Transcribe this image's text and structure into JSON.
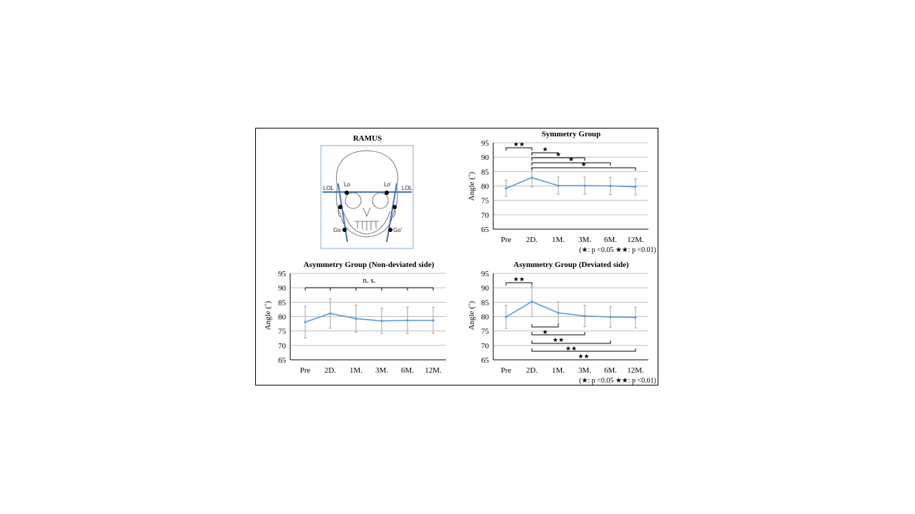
{
  "diagram": {
    "title": "RAMUS",
    "labels": {
      "lol_left": "LOL",
      "lol_right": "LOL",
      "lo": "Lo",
      "lo_prime": "Lo'",
      "go": "Go",
      "go_prime": "Go'"
    }
  },
  "colors": {
    "series": "#5b9bd5",
    "grid": "#bfbfbf",
    "axis": "#000000",
    "errorbar": "#a6a6a6",
    "diagram_border": "#8ea9db",
    "diagram_line": "#4472c4"
  },
  "chart_data": [
    {
      "id": "symmetry",
      "type": "line",
      "title": "Symmetry Group",
      "ylabel": "Angle (˚)",
      "ylim": [
        65,
        95
      ],
      "yticks": [
        65,
        70,
        75,
        80,
        85,
        90,
        95
      ],
      "categories": [
        "Pre",
        "2D.",
        "1M.",
        "3M.",
        "6M.",
        "12M."
      ],
      "series": [
        {
          "values": [
            79.2,
            82.9,
            80.1,
            80.1,
            80.0,
            79.7
          ],
          "err": [
            2.8,
            3.3,
            3.0,
            3.0,
            3.0,
            2.8
          ]
        }
      ],
      "note": "(★: p <0.05  ★★: p <0.01)",
      "significance": [
        {
          "from": 0,
          "to": 1,
          "label": "★★"
        },
        {
          "from": 1,
          "to": 2,
          "label": "★"
        },
        {
          "from": 1,
          "to": 3,
          "label": "★"
        },
        {
          "from": 1,
          "to": 4,
          "label": "★"
        },
        {
          "from": 1,
          "to": 5,
          "label": "★"
        }
      ]
    },
    {
      "id": "asym_non",
      "type": "line",
      "title": "Asymmetry Group (Non-deviated side)",
      "ylabel": "Angle (˚)",
      "ylim": [
        65,
        95
      ],
      "yticks": [
        65,
        70,
        75,
        80,
        85,
        90,
        95
      ],
      "categories": [
        "Pre",
        "2D.",
        "1M.",
        "3M.",
        "6M.",
        "12M."
      ],
      "series": [
        {
          "values": [
            78.1,
            81.1,
            79.3,
            78.5,
            78.7,
            78.7
          ],
          "err": [
            5.5,
            5.1,
            4.7,
            4.4,
            4.6,
            4.5
          ]
        }
      ],
      "note": "",
      "bracket_all": {
        "label": "n. s."
      },
      "significance": []
    },
    {
      "id": "asym_dev",
      "type": "line",
      "title": "Asymmetry Group (Deviated side)",
      "ylabel": "Angle (˚)",
      "ylim": [
        65,
        95
      ],
      "yticks": [
        65,
        70,
        75,
        80,
        85,
        90,
        95
      ],
      "categories": [
        "Pre",
        "2D.",
        "1M.",
        "3M.",
        "6M.",
        "12M."
      ],
      "series": [
        {
          "values": [
            79.9,
            85.2,
            81.3,
            80.2,
            79.9,
            79.7
          ],
          "err": [
            4.0,
            5.2,
            3.8,
            3.7,
            3.6,
            3.6
          ]
        }
      ],
      "note": "(★: p <0.05  ★★: p <0.01)",
      "significance": [
        {
          "from": 0,
          "to": 1,
          "label": "★★",
          "pos": "above"
        },
        {
          "from": 1,
          "to": 2,
          "label": "★",
          "pos": "below"
        },
        {
          "from": 1,
          "to": 3,
          "label": "★★",
          "pos": "below"
        },
        {
          "from": 1,
          "to": 4,
          "label": "★★",
          "pos": "below"
        },
        {
          "from": 1,
          "to": 5,
          "label": "★★",
          "pos": "below"
        }
      ]
    }
  ]
}
